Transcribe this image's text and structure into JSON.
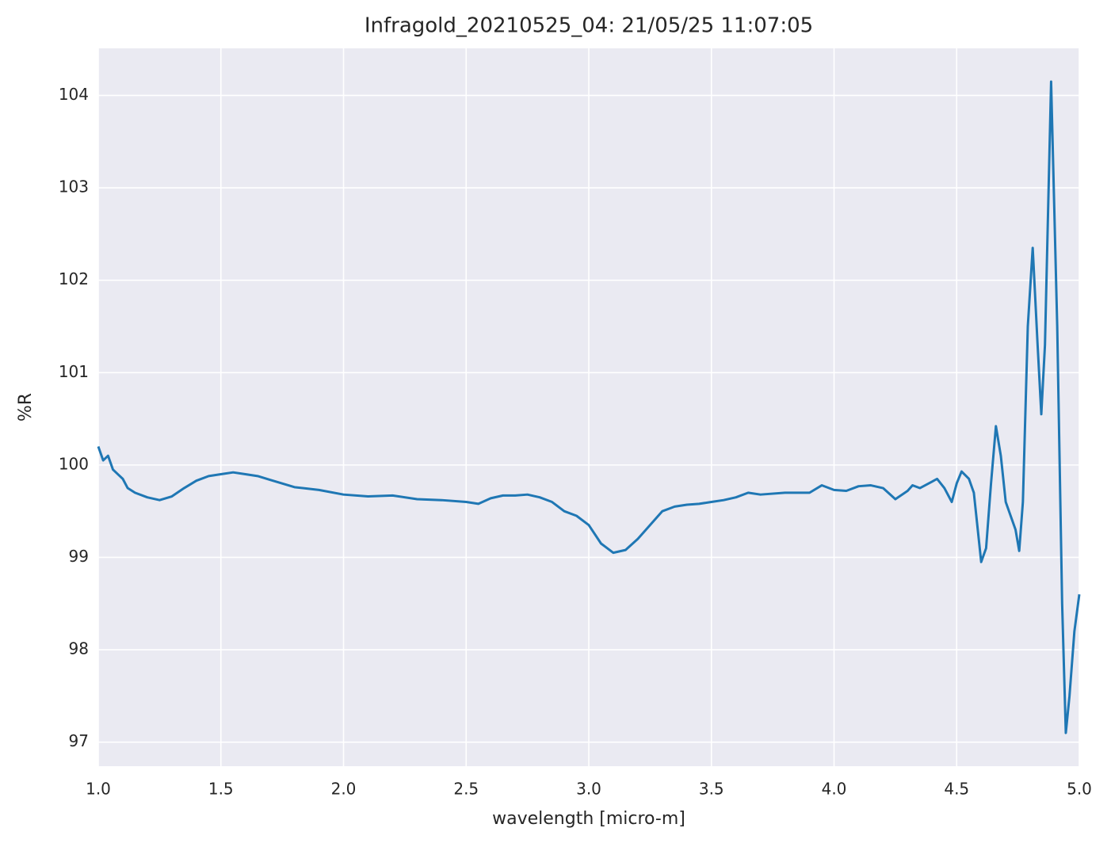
{
  "chart_data": {
    "type": "line",
    "title": "Infragold_20210525_04:  21/05/25 11:07:05",
    "xlabel": "wavelength [micro-m]",
    "ylabel": "%R",
    "x": [
      1.0,
      1.02,
      1.04,
      1.06,
      1.08,
      1.1,
      1.12,
      1.15,
      1.2,
      1.25,
      1.3,
      1.35,
      1.4,
      1.45,
      1.5,
      1.55,
      1.6,
      1.65,
      1.7,
      1.75,
      1.8,
      1.9,
      2.0,
      2.1,
      2.2,
      2.3,
      2.4,
      2.5,
      2.55,
      2.6,
      2.65,
      2.7,
      2.75,
      2.8,
      2.85,
      2.9,
      2.95,
      3.0,
      3.05,
      3.1,
      3.15,
      3.2,
      3.25,
      3.3,
      3.35,
      3.4,
      3.45,
      3.5,
      3.55,
      3.6,
      3.65,
      3.7,
      3.8,
      3.9,
      3.95,
      4.0,
      4.05,
      4.1,
      4.15,
      4.2,
      4.25,
      4.3,
      4.32,
      4.35,
      4.4,
      4.42,
      4.45,
      4.48,
      4.5,
      4.52,
      4.55,
      4.57,
      4.6,
      4.62,
      4.64,
      4.66,
      4.68,
      4.7,
      4.72,
      4.74,
      4.755,
      4.77,
      4.79,
      4.81,
      4.83,
      4.845,
      4.86,
      4.885,
      4.91,
      4.93,
      4.945,
      4.96,
      4.98,
      5.0
    ],
    "series": [
      {
        "name": "%R",
        "color": "#1f77b4",
        "values": [
          100.2,
          100.05,
          100.1,
          99.95,
          99.9,
          99.85,
          99.75,
          99.7,
          99.65,
          99.62,
          99.66,
          99.75,
          99.83,
          99.88,
          99.9,
          99.92,
          99.9,
          99.88,
          99.84,
          99.8,
          99.76,
          99.73,
          99.68,
          99.66,
          99.67,
          99.63,
          99.62,
          99.6,
          99.58,
          99.64,
          99.67,
          99.67,
          99.68,
          99.65,
          99.6,
          99.5,
          99.45,
          99.35,
          99.15,
          99.05,
          99.08,
          99.2,
          99.35,
          99.5,
          99.55,
          99.57,
          99.58,
          99.6,
          99.62,
          99.65,
          99.7,
          99.68,
          99.7,
          99.7,
          99.78,
          99.73,
          99.72,
          99.77,
          99.78,
          99.75,
          99.63,
          99.72,
          99.78,
          99.75,
          99.82,
          99.85,
          99.75,
          99.6,
          99.8,
          99.93,
          99.85,
          99.7,
          98.95,
          99.1,
          99.8,
          100.42,
          100.1,
          99.6,
          99.45,
          99.3,
          99.07,
          99.6,
          101.5,
          102.35,
          101.3,
          100.55,
          101.3,
          104.15,
          101.5,
          98.5,
          97.1,
          97.5,
          98.2,
          98.6
        ]
      }
    ],
    "xlim": [
      1.0,
      5.0
    ],
    "ylim": [
      96.74,
      104.51
    ],
    "xticks": [
      {
        "value": 1.0,
        "label": "1.0"
      },
      1.5,
      {
        "value": 2.0,
        "label": "2.0"
      },
      2.5,
      {
        "value": 3.0,
        "label": "3.0"
      },
      3.5,
      {
        "value": 4.0,
        "label": "4.0"
      },
      4.5,
      {
        "value": 5.0,
        "label": "5.0"
      }
    ],
    "yticks": [
      97,
      98,
      99,
      100,
      101,
      102,
      103,
      104
    ],
    "grid": true
  }
}
